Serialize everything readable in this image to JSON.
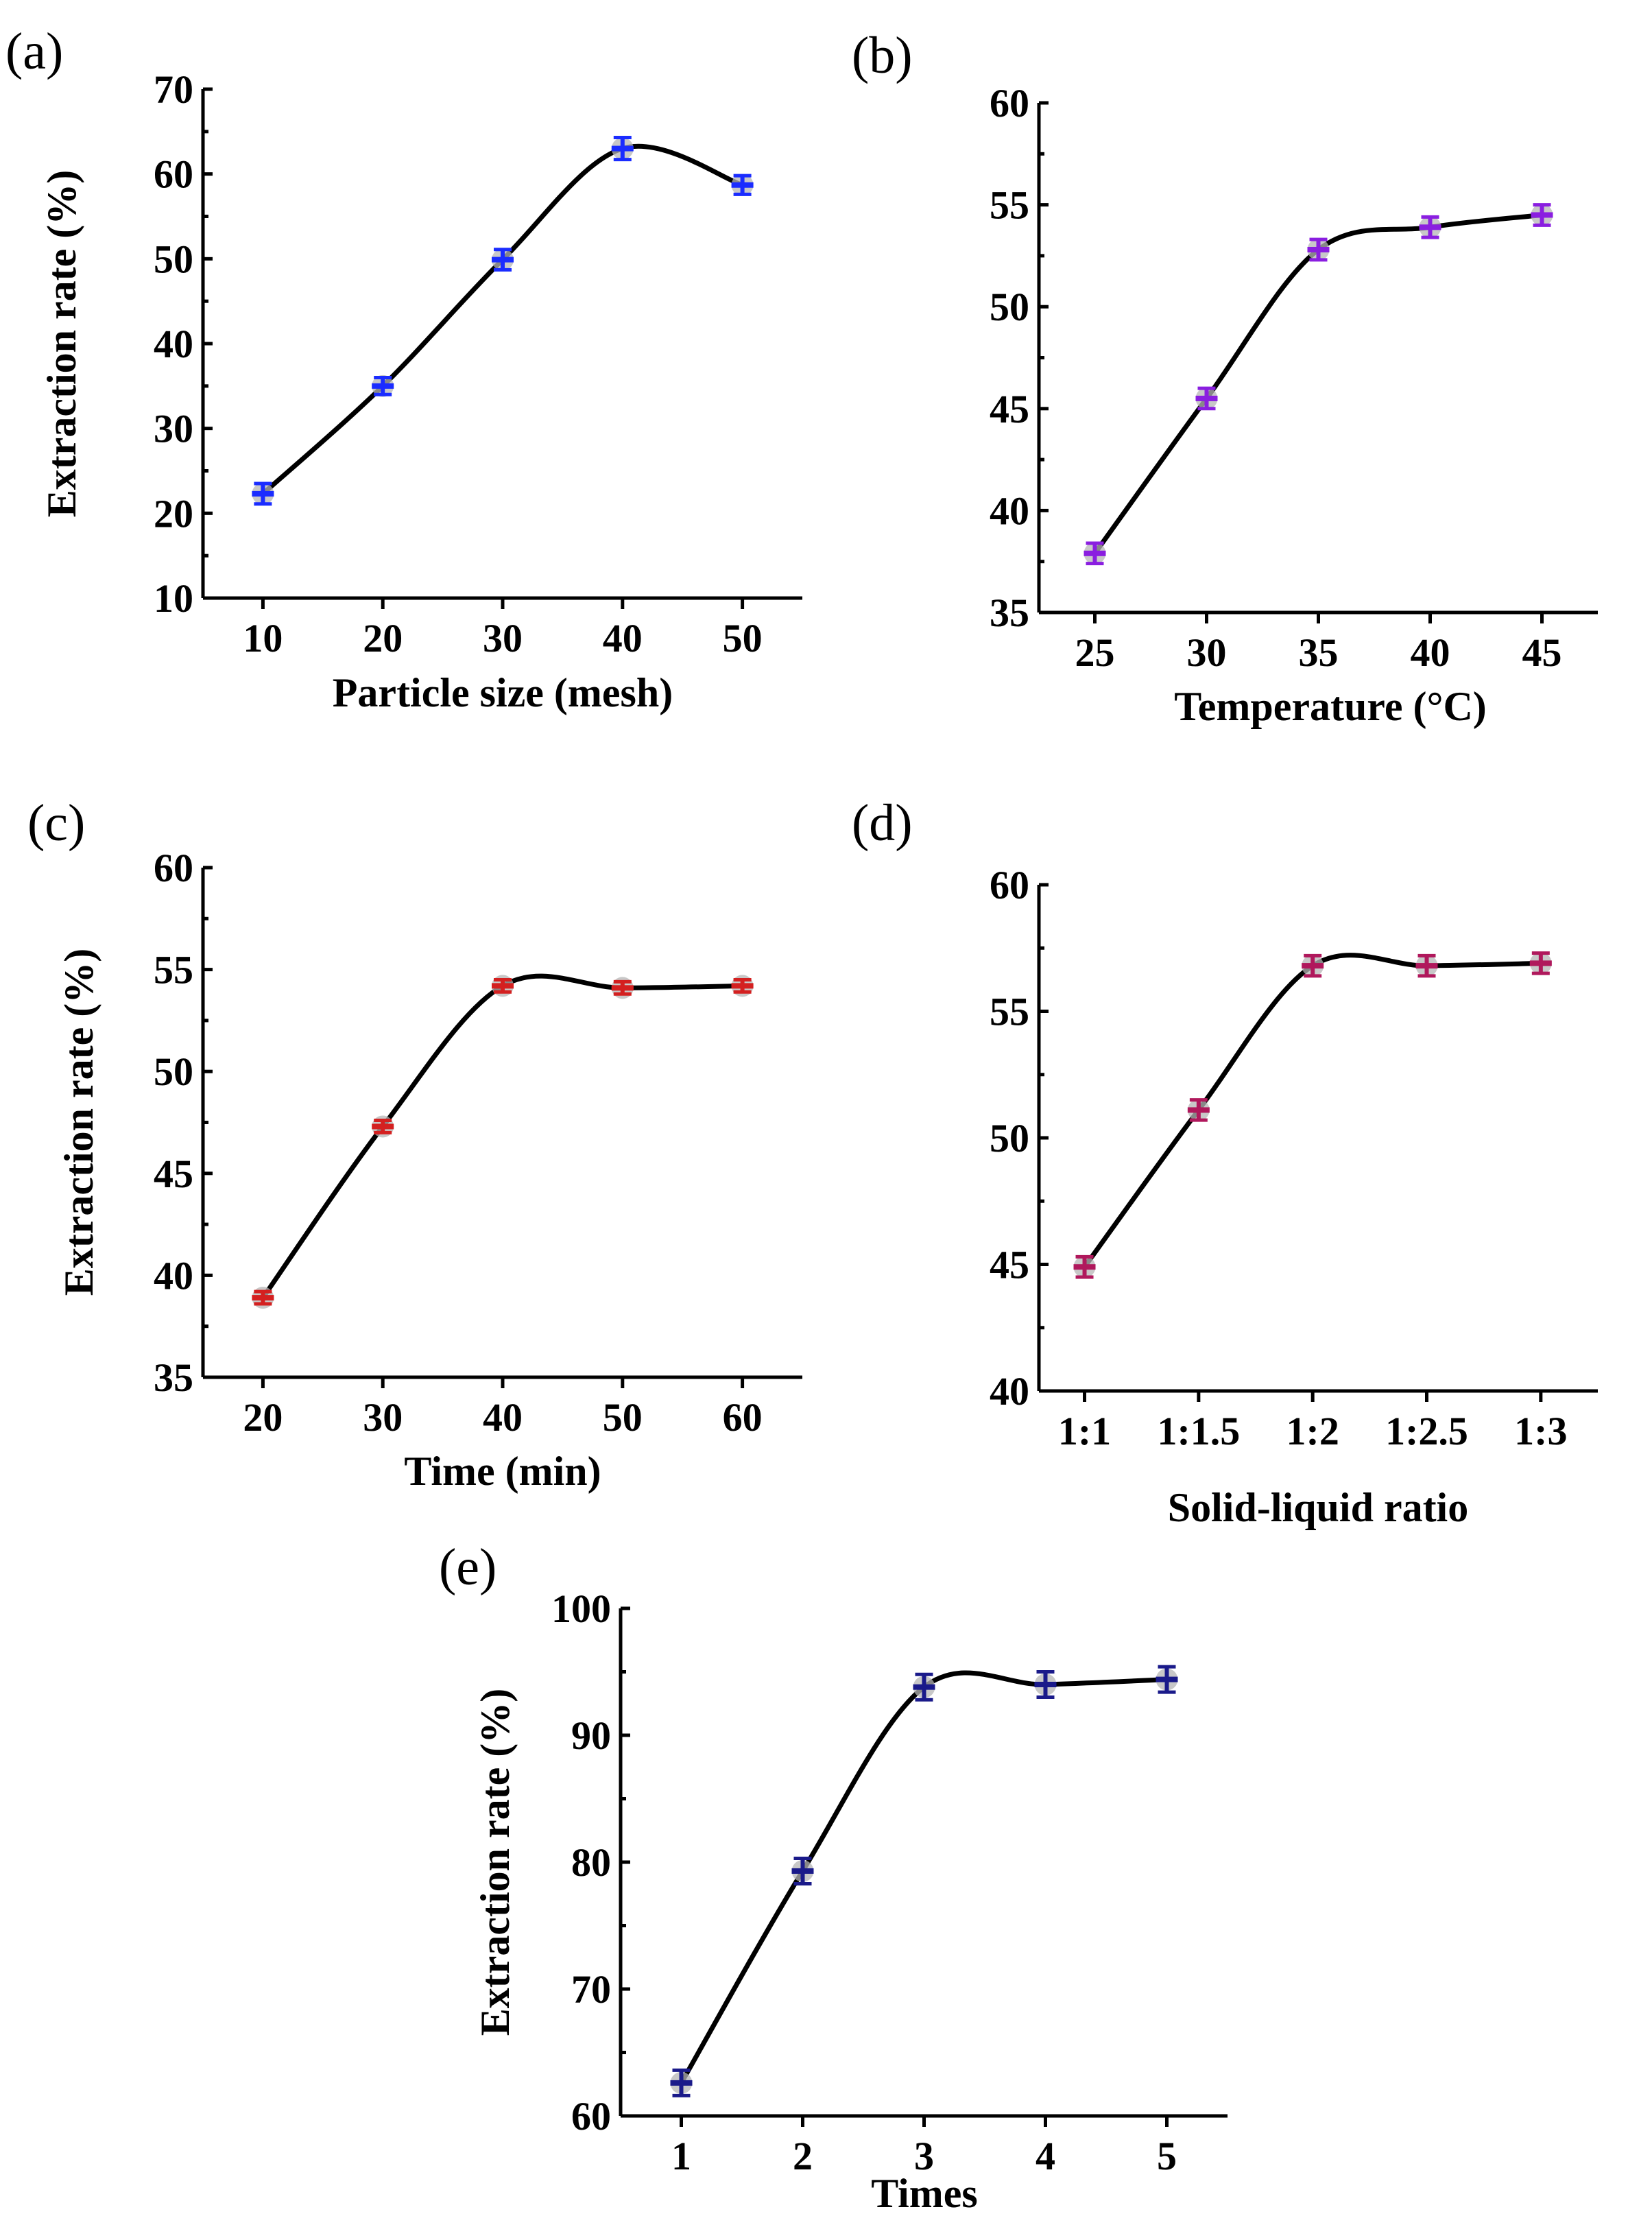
{
  "chart_data": [
    {
      "id": "a",
      "panel_label": "(a)",
      "type": "line",
      "smooth": true,
      "marker_color": "#1a2cff",
      "x": [
        10,
        20,
        30,
        40,
        50
      ],
      "values": [
        22.3,
        35.0,
        49.9,
        63.0,
        58.7
      ],
      "errors": [
        1.2,
        1.0,
        1.2,
        1.3,
        1.1
      ],
      "x_ticks": [
        "10",
        "20",
        "30",
        "40",
        "50"
      ],
      "y_ticks": [
        "10",
        "20",
        "30",
        "40",
        "50",
        "60",
        "70"
      ],
      "ylim": [
        10,
        70
      ],
      "xlim": [
        5,
        55
      ],
      "xlabel": "Particle size (mesh)",
      "ylabel": "Extraction rate (%)"
    },
    {
      "id": "b",
      "panel_label": "(b)",
      "type": "line",
      "smooth": true,
      "marker_color": "#8a1ee0",
      "x": [
        25,
        30,
        35,
        40,
        45
      ],
      "values": [
        37.9,
        45.5,
        52.8,
        53.9,
        54.5
      ],
      "errors": [
        0.5,
        0.5,
        0.5,
        0.5,
        0.5
      ],
      "x_ticks": [
        "25",
        "30",
        "35",
        "40",
        "45"
      ],
      "y_ticks": [
        "35",
        "40",
        "45",
        "50",
        "55",
        "60"
      ],
      "ylim": [
        35,
        60
      ],
      "xlim": [
        22.5,
        47.5
      ],
      "xlabel": "Temperature (°C)",
      "ylabel": ""
    },
    {
      "id": "c",
      "panel_label": "(c)",
      "type": "line",
      "smooth": true,
      "marker_color": "#d42020",
      "x": [
        20,
        30,
        40,
        50,
        60
      ],
      "values": [
        38.9,
        47.3,
        54.2,
        54.1,
        54.2
      ],
      "errors": [
        0.3,
        0.3,
        0.3,
        0.3,
        0.3
      ],
      "x_ticks": [
        "20",
        "30",
        "40",
        "50",
        "60"
      ],
      "y_ticks": [
        "35",
        "40",
        "45",
        "50",
        "55",
        "60"
      ],
      "ylim": [
        35,
        60
      ],
      "xlim": [
        15,
        65
      ],
      "xlabel": "Time (min)",
      "ylabel": "Extraction rate (%)"
    },
    {
      "id": "d",
      "panel_label": "(d)",
      "type": "line",
      "smooth": true,
      "marker_color": "#b0185c",
      "x": [
        1,
        2,
        3,
        4,
        5
      ],
      "values": [
        44.9,
        51.1,
        56.8,
        56.8,
        56.9
      ],
      "errors": [
        0.4,
        0.4,
        0.4,
        0.4,
        0.4
      ],
      "x_ticks": [
        "1:1",
        "1:1.5",
        "1:2",
        "1:2.5",
        "1:3"
      ],
      "y_ticks": [
        "40",
        "45",
        "50",
        "55",
        "60"
      ],
      "ylim": [
        40,
        60
      ],
      "xlim": [
        0.6,
        5.5
      ],
      "xlabel": "Solid-liquid ratio",
      "ylabel": ""
    },
    {
      "id": "e",
      "panel_label": "(e)",
      "type": "line",
      "smooth": true,
      "marker_color": "#1a1a8a",
      "x": [
        1,
        2,
        3,
        4,
        5
      ],
      "values": [
        62.6,
        79.3,
        93.8,
        94.0,
        94.4
      ],
      "errors": [
        1.0,
        1.0,
        1.0,
        1.0,
        1.0
      ],
      "x_ticks": [
        "1",
        "2",
        "3",
        "4",
        "5"
      ],
      "y_ticks": [
        "60",
        "70",
        "80",
        "90",
        "100"
      ],
      "ylim": [
        60,
        100
      ],
      "xlim": [
        0.5,
        5.5
      ],
      "xlabel": "Times",
      "ylabel": "Extraction rate (%)"
    }
  ]
}
